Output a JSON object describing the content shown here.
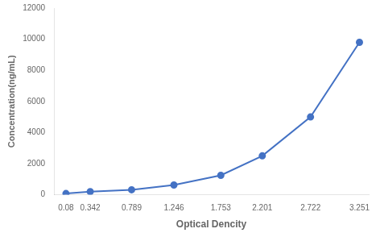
{
  "chart_data": {
    "type": "line",
    "x": [
      0.08,
      0.342,
      0.789,
      1.246,
      1.753,
      2.201,
      2.722,
      3.251
    ],
    "values": [
      78,
      200,
      320,
      625,
      1250,
      2500,
      5000,
      9800
    ],
    "color": "#4472C4",
    "marker": "circle",
    "xlabel": "Optical Dencity",
    "ylabel": "Concentration(ng/mL)",
    "xlim": [
      -0.05,
      3.351
    ],
    "ylim": [
      0,
      12000
    ],
    "xticks": [
      0.08,
      0.342,
      0.789,
      1.246,
      1.753,
      2.201,
      2.722,
      3.251
    ],
    "yticks": [
      0,
      2000,
      4000,
      6000,
      8000,
      10000,
      12000
    ],
    "grid": false
  }
}
